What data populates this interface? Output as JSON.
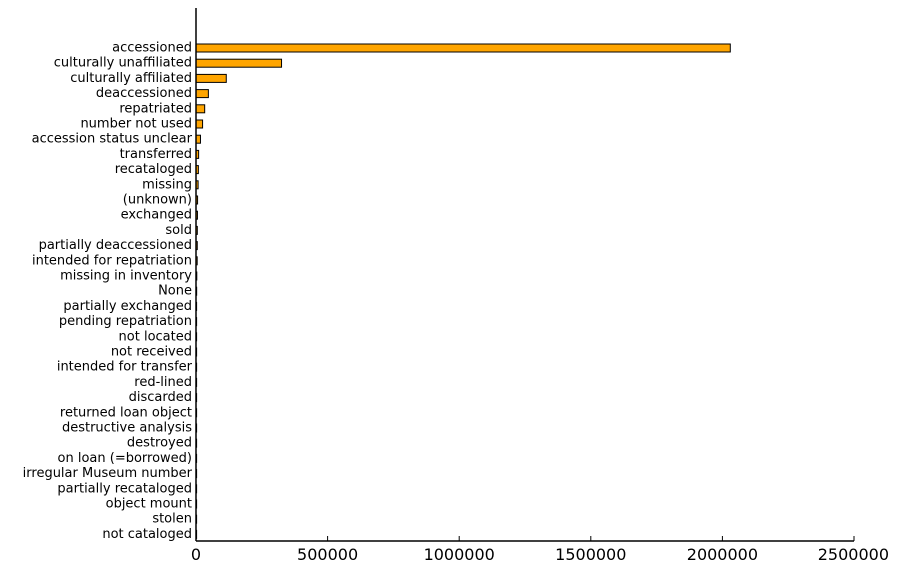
{
  "chart_data": {
    "type": "bar",
    "orientation": "horizontal",
    "categories": [
      "accessioned",
      "culturally unaffiliated",
      "culturally affiliated",
      "deaccessioned",
      "repatriated",
      "number not used",
      "accession status unclear",
      "transferred",
      "recataloged",
      "missing",
      "(unknown)",
      "exchanged",
      "sold",
      "partially deaccessioned",
      "intended for repatriation",
      "missing in inventory",
      "None",
      "partially exchanged",
      "pending repatriation",
      "not located",
      "not received",
      "intended for transfer",
      "red-lined",
      "discarded",
      "returned loan object",
      "destructive analysis",
      "destroyed",
      "on loan (=borrowed)",
      "irregular Museum number",
      "partially recataloged",
      "object mount",
      "stolen",
      "not cataloged"
    ],
    "values": [
      2030000,
      325000,
      115000,
      47000,
      33000,
      25000,
      17000,
      10000,
      9000,
      8000,
      6000,
      5500,
      5000,
      4800,
      4500,
      3000,
      2500,
      2000,
      1800,
      1500,
      1300,
      1100,
      1000,
      900,
      800,
      700,
      600,
      500,
      400,
      300,
      200,
      150,
      100
    ],
    "bar_color": "#FFA500",
    "xlim": [
      0,
      2500000
    ],
    "xticks": [
      0,
      500000,
      1000000,
      1500000,
      2000000,
      2500000
    ],
    "xtick_labels": [
      "0",
      "500000",
      "1000000",
      "1500000",
      "2000000",
      "2500000"
    ],
    "grid": false,
    "title": "",
    "xlabel": "",
    "ylabel": ""
  }
}
